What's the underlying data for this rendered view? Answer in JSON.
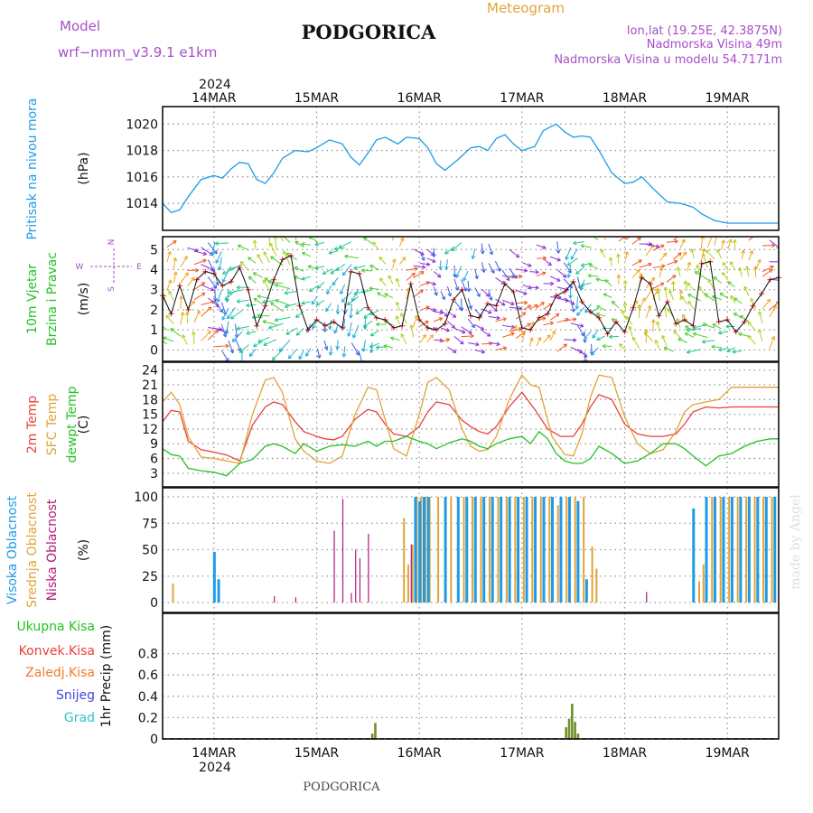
{
  "header": {
    "model_label": "Model",
    "model_name": "wrf−nmm_v3.9.1  e1km",
    "title": "PODGORICA",
    "meteogram": "Meteogram",
    "lonlat": "lon,lat (19.25E, 42.3875N)",
    "alt": "Nadmorska Visina 49m",
    "alt_model": "Nadmorska Visina u modelu 54.7171m",
    "year_top": "2024",
    "year_bottom": "2024",
    "footer": "PODGORICA",
    "credit": "made by Angel"
  },
  "colors": {
    "pressure": "#1e9be6",
    "temp2m": "#e8413a",
    "sfc": "#e0a437",
    "dewpt": "#24c224",
    "high_cloud": "#1e9be6",
    "mid_cloud": "#e0a437",
    "low_cloud": "#b0197a",
    "total_precip": "#24c224",
    "conv_precip": "#e8413a",
    "ice": "#f07c2a",
    "snow": "#4444dd",
    "hail": "#33c4c4",
    "precip_bar": "#6f8f2a",
    "model_text": "#a64fc8"
  },
  "chart_data": {
    "type": "line",
    "x_unit": "hours since 14MAR 00UTC",
    "day_labels": [
      "14MAR",
      "15MAR",
      "16MAR",
      "17MAR",
      "18MAR",
      "19MAR"
    ],
    "day_hours": [
      0,
      24,
      48,
      72,
      96,
      120
    ],
    "x_range": [
      -12,
      132
    ],
    "panels": [
      {
        "id": "pressure",
        "ylabel": "(hPa)",
        "side_labels": [
          "Pritisak na nivou mora"
        ],
        "ylim": [
          1012.5,
          1020.5
        ],
        "yticks": [
          1014,
          1016,
          1018,
          1020
        ],
        "series": [
          {
            "name": "Pritisak na nivou mora",
            "color_key": "pressure",
            "x": [
              -12,
              -10,
              -8,
              -6,
              -3,
              0,
              2,
              4,
              6,
              8,
              10,
              12,
              14,
              16,
              19,
              22,
              24,
              27,
              30,
              32,
              34,
              36,
              38,
              40,
              43,
              45,
              48,
              50,
              52,
              54,
              57,
              60,
              62,
              64,
              66,
              68,
              70,
              72,
              75,
              77,
              80,
              82,
              84,
              86,
              88,
              90,
              93,
              96,
              98,
              100,
              103,
              106,
              109,
              112,
              114,
              117,
              120,
              123,
              126,
              129,
              132
            ],
            "y": [
              1014.0,
              1013.3,
              1013.5,
              1014.5,
              1015.8,
              1016.1,
              1015.9,
              1016.6,
              1017.1,
              1017.0,
              1015.8,
              1015.5,
              1016.3,
              1017.4,
              1018.0,
              1017.9,
              1018.2,
              1018.8,
              1018.5,
              1017.5,
              1016.9,
              1017.8,
              1018.8,
              1019.0,
              1018.5,
              1019.0,
              1018.9,
              1018.2,
              1017.0,
              1016.5,
              1017.3,
              1018.2,
              1018.3,
              1018.0,
              1018.9,
              1019.2,
              1018.5,
              1018.0,
              1018.3,
              1019.5,
              1020.0,
              1019.4,
              1019.0,
              1019.1,
              1019.0,
              1018.0,
              1016.3,
              1015.5,
              1015.6,
              1016.0,
              1015.0,
              1014.1,
              1014.0,
              1013.7,
              1013.2,
              1012.7,
              1012.5,
              1012.5,
              1012.5,
              1012.5,
              1012.5
            ]
          }
        ]
      },
      {
        "id": "wind",
        "ylabel": "(m/s)",
        "side_labels": [
          "10m Vjetar",
          "Brzina i Pravac"
        ],
        "compass": {
          "n": "N",
          "e": "E",
          "w": "W",
          "s": "S"
        },
        "ylim": [
          -0.3,
          5.6
        ],
        "yticks": [
          0,
          1,
          2,
          3,
          4,
          5
        ],
        "series": [
          {
            "name": "Brzina",
            "color_key": "dewpt",
            "x": [
              -12,
              -10,
              -8,
              -6,
              -4,
              -2,
              0,
              2,
              4,
              6,
              8,
              10,
              12,
              14,
              16,
              18,
              20,
              22,
              24,
              26,
              28,
              30,
              32,
              34,
              36,
              38,
              40,
              42,
              44,
              46,
              48,
              50,
              52,
              54,
              56,
              58,
              60,
              62,
              64,
              66,
              68,
              70,
              72,
              74,
              76,
              78,
              80,
              82,
              84,
              86,
              88,
              90,
              92,
              94,
              96,
              98,
              100,
              102,
              104,
              106,
              108,
              110,
              112,
              114,
              116,
              118,
              120,
              122,
              124,
              126,
              128,
              130,
              132
            ],
            "y": [
              2.7,
              1.8,
              3.2,
              2.0,
              3.5,
              3.9,
              3.8,
              3.2,
              3.4,
              4.1,
              3.0,
              1.2,
              2.2,
              3.5,
              4.5,
              4.7,
              2.2,
              1.0,
              1.5,
              1.2,
              1.4,
              1.1,
              3.9,
              3.8,
              2.1,
              1.6,
              1.5,
              1.1,
              1.2,
              3.3,
              1.5,
              1.1,
              1.0,
              1.3,
              2.5,
              3.0,
              1.7,
              1.6,
              2.3,
              2.2,
              3.3,
              2.9,
              1.1,
              1.0,
              1.6,
              1.8,
              2.7,
              2.9,
              3.4,
              2.4,
              1.9,
              1.6,
              0.8,
              1.4,
              0.9,
              2.1,
              3.6,
              3.3,
              1.7,
              2.4,
              1.3,
              1.5,
              1.2,
              4.3,
              4.4,
              1.4,
              1.5,
              0.9,
              1.4,
              2.2,
              2.8,
              3.5,
              3.6
            ]
          }
        ]
      },
      {
        "id": "temperature",
        "ylabel": "(C)",
        "side_labels": [
          "2m Temp",
          "SFC Temp",
          "dewpt Temp"
        ],
        "ylim": [
          1.5,
          24.5
        ],
        "yticks": [
          3,
          6,
          9,
          12,
          15,
          18,
          21,
          24
        ],
        "series": [
          {
            "name": "2m Temp",
            "color_key": "temp2m",
            "x": [
              -12,
              -10,
              -8,
              -6,
              -3,
              0,
              3,
              6,
              9,
              12,
              14,
              16,
              19,
              21,
              24,
              26,
              28,
              30,
              33,
              36,
              38,
              40,
              42,
              45,
              48,
              50,
              52,
              55,
              58,
              60,
              62,
              64,
              66,
              69,
              72,
              75,
              78,
              81,
              84,
              86,
              88,
              90,
              93,
              96,
              99,
              102,
              105,
              108,
              110,
              112,
              115,
              118,
              121,
              124,
              127,
              130,
              132
            ],
            "y": [
              13.5,
              15.8,
              15.5,
              9.5,
              7.8,
              7.3,
              6.7,
              5.5,
              12.8,
              16.5,
              17.5,
              17.0,
              13.5,
              11.5,
              10.5,
              10.0,
              9.8,
              10.5,
              14.0,
              16.0,
              15.5,
              13.0,
              11.0,
              10.5,
              12.5,
              15.5,
              17.5,
              17.0,
              13.8,
              12.5,
              11.5,
              11.0,
              12.5,
              16.5,
              19.5,
              16.0,
              12.0,
              10.5,
              10.5,
              13.0,
              16.5,
              19.0,
              18.0,
              13.0,
              11.0,
              10.5,
              10.5,
              11.0,
              13.0,
              15.5,
              16.5,
              16.3,
              16.5,
              16.5,
              16.5,
              16.5,
              16.5
            ]
          },
          {
            "name": "SFC Temp",
            "color_key": "sfc",
            "x": [
              -12,
              -10,
              -8,
              -6,
              -3,
              0,
              3,
              6,
              9,
              12,
              14,
              16,
              19,
              21,
              24,
              27,
              30,
              33,
              36,
              38,
              40,
              42,
              45,
              48,
              50,
              52,
              55,
              58,
              60,
              62,
              64,
              66,
              69,
              72,
              74,
              76,
              79,
              82,
              84,
              86,
              88,
              90,
              93,
              96,
              99,
              102,
              105,
              108,
              110,
              112,
              115,
              118,
              121,
              124,
              127,
              130,
              132
            ],
            "y": [
              17.5,
              19.5,
              17.0,
              10.5,
              6.3,
              6.0,
              5.5,
              5.0,
              15.0,
              22.0,
              22.5,
              19.5,
              10.0,
              7.5,
              5.5,
              5.0,
              6.5,
              15.0,
              20.5,
              20.0,
              14.0,
              8.0,
              6.5,
              15.0,
              21.5,
              22.5,
              20.0,
              12.0,
              8.5,
              7.5,
              7.8,
              10.5,
              18.0,
              23.0,
              21.0,
              20.5,
              10.5,
              6.8,
              6.5,
              11.0,
              18.5,
              23.0,
              22.5,
              14.5,
              9.0,
              7.0,
              7.8,
              11.5,
              15.5,
              17.0,
              17.5,
              18.0,
              20.5,
              20.5,
              20.5,
              20.5,
              20.5
            ]
          },
          {
            "name": "dewpt Temp",
            "color_key": "dewpt",
            "x": [
              -12,
              -10,
              -8,
              -6,
              -3,
              0,
              3,
              6,
              9,
              12,
              14,
              16,
              19,
              21,
              24,
              27,
              30,
              33,
              36,
              38,
              40,
              42,
              45,
              48,
              50,
              52,
              55,
              58,
              60,
              62,
              64,
              66,
              69,
              72,
              74,
              76,
              78,
              80,
              82,
              84,
              86,
              88,
              90,
              93,
              96,
              99,
              102,
              105,
              108,
              110,
              112,
              115,
              118,
              121,
              124,
              127,
              130,
              132
            ],
            "y": [
              8.0,
              6.8,
              6.5,
              4.0,
              3.5,
              3.2,
              2.5,
              5.0,
              5.8,
              8.5,
              9.0,
              8.5,
              7.0,
              9.0,
              7.5,
              8.5,
              8.8,
              8.5,
              9.5,
              8.5,
              9.5,
              9.5,
              10.5,
              9.5,
              9.0,
              8.0,
              9.2,
              10.0,
              9.5,
              8.5,
              8.0,
              9.0,
              10.0,
              10.5,
              9.0,
              11.5,
              10.0,
              7.0,
              5.5,
              5.0,
              5.0,
              6.0,
              8.5,
              7.0,
              5.0,
              5.5,
              7.0,
              9.0,
              9.0,
              8.0,
              6.5,
              4.5,
              6.5,
              7.0,
              8.5,
              9.5,
              10.0,
              10.0
            ]
          }
        ]
      },
      {
        "id": "clouds",
        "ylabel": "(%)",
        "side_labels": [
          "Visoka Oblacnost",
          "Srednja Oblacnost",
          "Niska Oblacnost"
        ],
        "ylim": [
          0,
          100
        ],
        "yticks": [
          0,
          25,
          50,
          75,
          100
        ],
        "high": {
          "x": [
            0,
            1,
            47,
            48,
            49,
            50,
            54,
            57,
            59,
            61,
            63,
            65,
            67,
            69,
            71,
            73,
            75,
            77,
            79,
            81,
            83,
            85,
            87,
            112,
            115,
            117,
            119,
            121,
            123,
            125,
            127,
            129,
            131
          ],
          "y": [
            48,
            22,
            100,
            96,
            100,
            100,
            100,
            100,
            100,
            100,
            100,
            100,
            100,
            100,
            100,
            100,
            100,
            100,
            100,
            100,
            100,
            96,
            22,
            89,
            100,
            100,
            100,
            100,
            100,
            100,
            100,
            100,
            100
          ]
        },
        "mid": {
          "x": [
            -10,
            44,
            45,
            46,
            47,
            48,
            49,
            50,
            52,
            55,
            58,
            60,
            62,
            64,
            66,
            68,
            70,
            72,
            74,
            76,
            78,
            80,
            82,
            84,
            86,
            88,
            89,
            113,
            114,
            116,
            118,
            120,
            122,
            124,
            126,
            128,
            130
          ],
          "y": [
            18,
            80,
            36,
            55,
            100,
            100,
            100,
            100,
            100,
            100,
            100,
            100,
            100,
            100,
            100,
            100,
            100,
            100,
            100,
            100,
            100,
            92,
            100,
            100,
            100,
            53,
            32,
            20,
            36,
            100,
            100,
            100,
            100,
            100,
            100,
            100,
            100
          ]
        },
        "low": {
          "x": [
            14,
            19,
            28,
            30,
            32,
            33,
            34,
            36,
            46,
            101
          ],
          "y": [
            6,
            5,
            68,
            98,
            9,
            50,
            42,
            65,
            55,
            10
          ]
        }
      },
      {
        "id": "precip",
        "ylabel": "1hr Precip (mm)",
        "side_labels": [
          "Ukupna Kisa",
          "Konvek.Kisa",
          "Zaledj.Kisa",
          "Snijeg",
          "Grad"
        ],
        "ylim": [
          0,
          1.0
        ],
        "yticks": [
          0,
          0.2,
          0.4,
          0.6,
          0.8
        ],
        "ytick_labels": [
          "0",
          "0.2",
          "0.4",
          "0.6",
          "0.8"
        ],
        "bars": {
          "x": [
            37.0,
            37.7,
            82.3,
            83.0,
            83.7,
            84.4,
            85.1
          ],
          "y": [
            0.05,
            0.15,
            0.11,
            0.19,
            0.33,
            0.16,
            0.05
          ]
        }
      }
    ]
  }
}
